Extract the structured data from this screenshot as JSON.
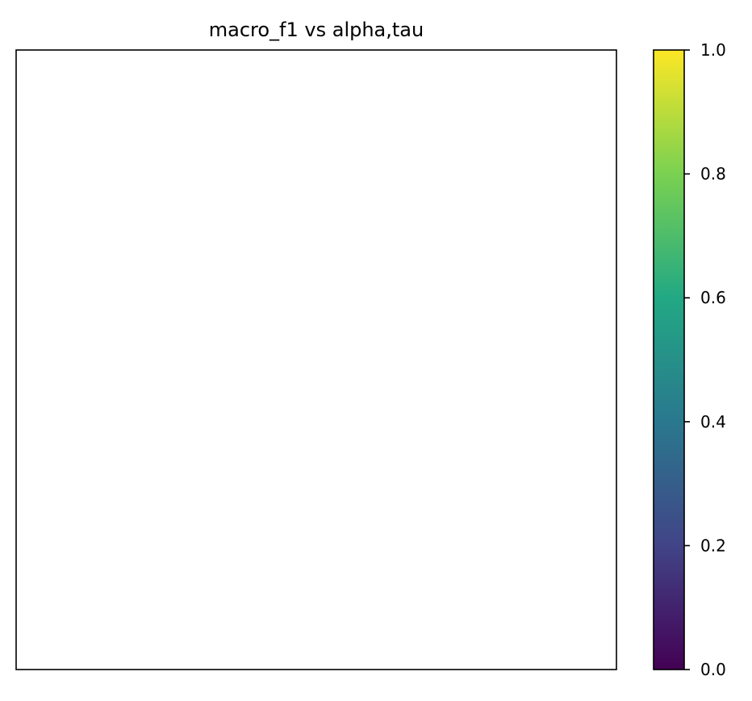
{
  "chart_data": {
    "type": "heatmap",
    "title": "macro_f1 vs alpha,tau",
    "xlabel": "",
    "ylabel": "",
    "values": [],
    "colorbar": {
      "colormap": "viridis",
      "range": [
        0.0,
        1.0
      ],
      "ticks": [
        0.0,
        0.2,
        0.4,
        0.6,
        0.8,
        1.0
      ],
      "tick_labels": [
        "0.0",
        "0.2",
        "0.4",
        "0.6",
        "0.8",
        "1.0"
      ],
      "colors": [
        "#440154",
        "#414487",
        "#2a788e",
        "#22a884",
        "#7ad151",
        "#fde725"
      ]
    }
  }
}
